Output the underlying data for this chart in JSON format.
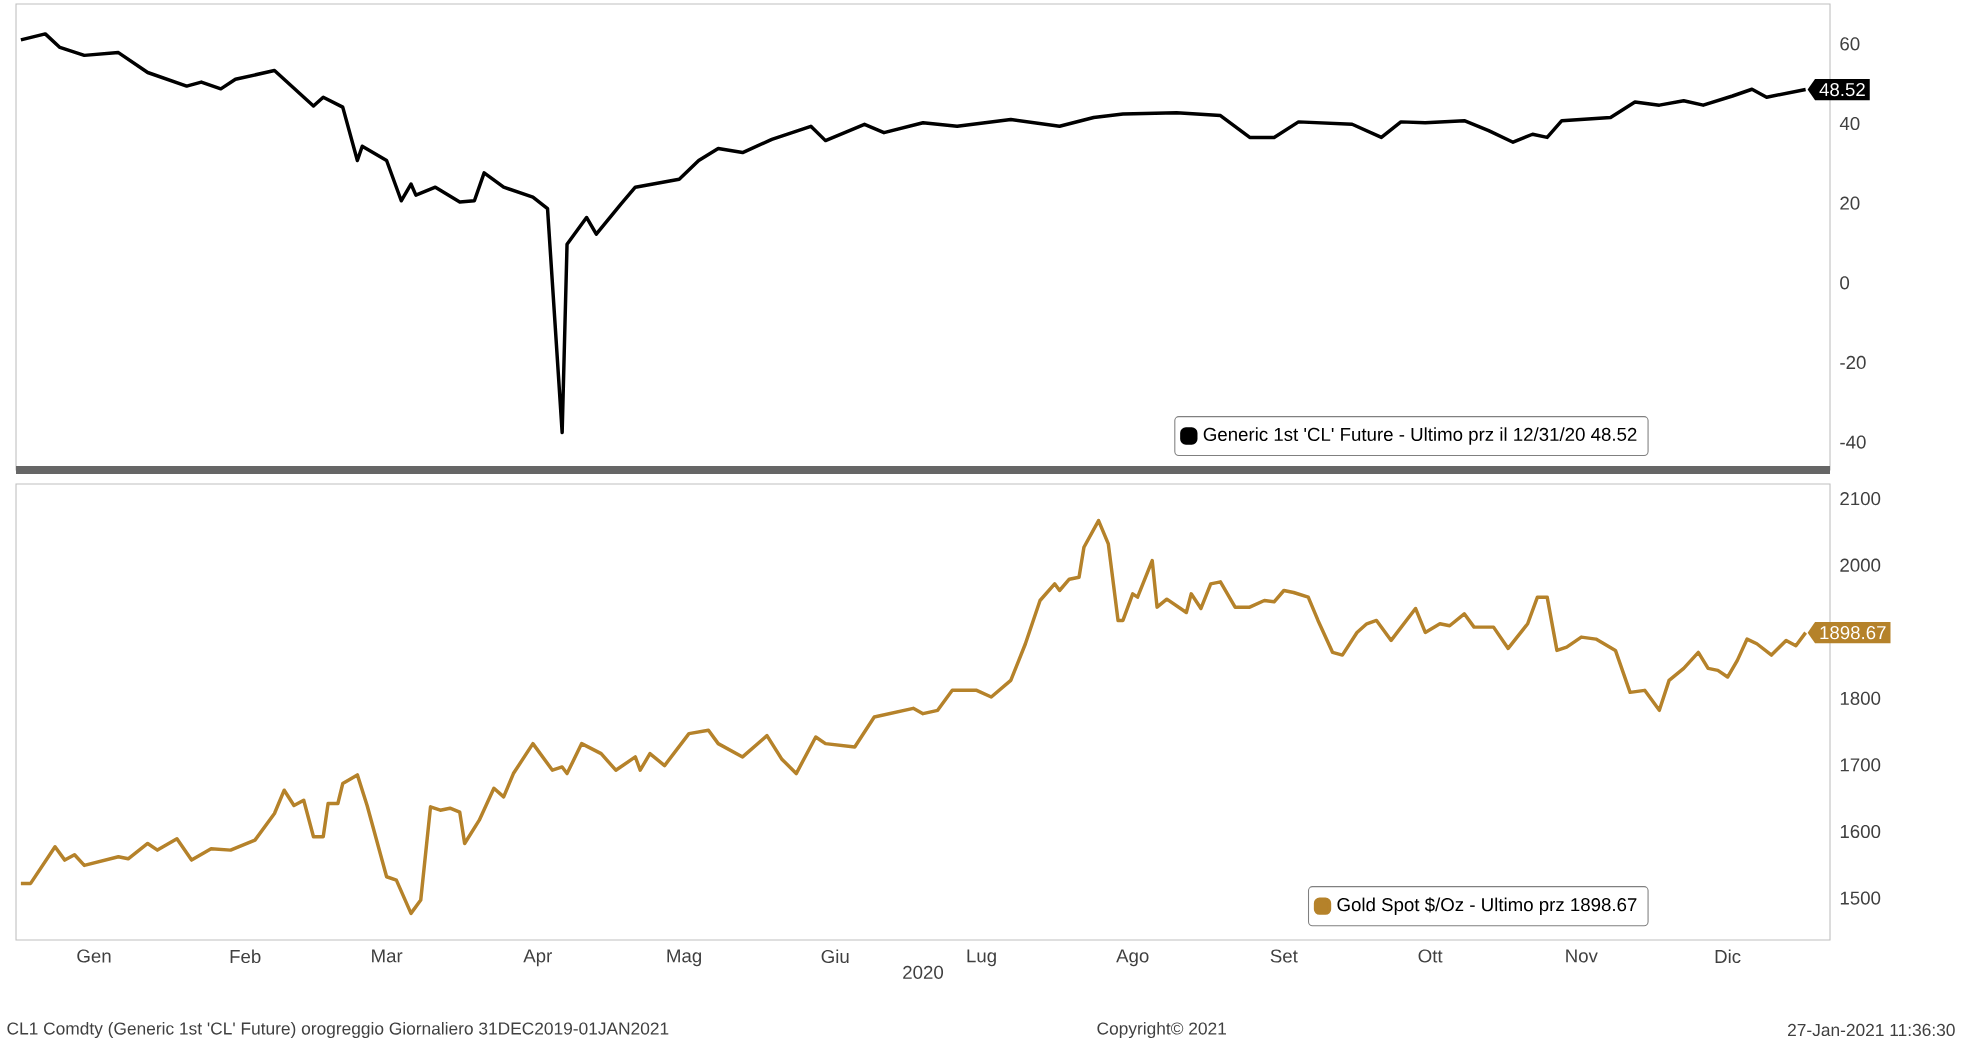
{
  "chart_data": [
    {
      "type": "line",
      "x": [
        "2019-12-31",
        "2020-01-05",
        "2020-01-08",
        "2020-01-13",
        "2020-01-20",
        "2020-01-26",
        "2020-02-03",
        "2020-02-06",
        "2020-02-10",
        "2020-02-13",
        "2020-02-21",
        "2020-02-29",
        "2020-03-02",
        "2020-03-06",
        "2020-03-09",
        "2020-03-10",
        "2020-03-15",
        "2020-03-18",
        "2020-03-20",
        "2020-03-21",
        "2020-03-25",
        "2020-03-30",
        "2020-04-02",
        "2020-04-04",
        "2020-04-08",
        "2020-04-14",
        "2020-04-17",
        "2020-04-20",
        "2020-04-21",
        "2020-04-25",
        "2020-04-27",
        "2020-05-02",
        "2020-05-05",
        "2020-05-14",
        "2020-05-18",
        "2020-05-22",
        "2020-05-27",
        "2020-06-02",
        "2020-06-10",
        "2020-06-13",
        "2020-06-21",
        "2020-06-25",
        "2020-07-03",
        "2020-07-10",
        "2020-07-21",
        "2020-07-31",
        "2020-08-07",
        "2020-08-13",
        "2020-08-24",
        "2020-09-02",
        "2020-09-08",
        "2020-09-13",
        "2020-09-18",
        "2020-09-29",
        "2020-10-05",
        "2020-10-09",
        "2020-10-14",
        "2020-10-22",
        "2020-10-27",
        "2020-11-01",
        "2020-11-05",
        "2020-11-08",
        "2020-11-11",
        "2020-11-21",
        "2020-11-26",
        "2020-12-01",
        "2020-12-06",
        "2020-12-10",
        "2020-12-16",
        "2020-12-20",
        "2020-12-23",
        "2020-12-31"
      ],
      "series": [
        {
          "name": "Generic 1st 'CL' Future - Ultimo prz il 12/31/20 48.52",
          "color": "#000000",
          "values": [
            61,
            62.5,
            59.1,
            57.1,
            57.8,
            52.8,
            49.4,
            50.4,
            48.7,
            51.1,
            53.3,
            44.4,
            46.6,
            44.1,
            30.7,
            34.3,
            30.7,
            20.6,
            24.8,
            22,
            24,
            20.3,
            20.6,
            27.6,
            24,
            21.5,
            18.6,
            -37.6,
            9.7,
            16.4,
            12.2,
            19.7,
            24,
            26,
            30.7,
            33.7,
            32.7,
            36,
            39.3,
            35.7,
            39.8,
            37.7,
            40.2,
            39.3,
            41,
            39.3,
            41.5,
            42.4,
            42.7,
            42,
            36.5,
            36.5,
            40.4,
            39.8,
            36.5,
            40.4,
            40.2,
            40.7,
            38.2,
            35.3,
            37.3,
            36.5,
            40.7,
            41.5,
            45.4,
            44.6,
            45.7,
            44.6,
            46.9,
            48.6,
            46.6,
            48.52
          ]
        }
      ],
      "xlim": [
        "2019-12-30",
        "2021-01-05"
      ],
      "xticks": [
        {
          "value": "2020-01-15",
          "label": null
        },
        {
          "value": "2020-02-15",
          "label": null
        },
        {
          "value": "2020-03-15",
          "label": null
        },
        {
          "value": "2020-04-15",
          "label": null
        },
        {
          "value": "2020-05-15",
          "label": null
        },
        {
          "value": "2020-06-15",
          "label": null
        },
        {
          "value": "2020-07-15",
          "label": null
        },
        {
          "value": "2020-08-15",
          "label": null
        },
        {
          "value": "2020-09-15",
          "label": null
        },
        {
          "value": "2020-10-15",
          "label": null
        },
        {
          "value": "2020-11-15",
          "label": null
        },
        {
          "value": "2020-12-15",
          "label": null
        }
      ],
      "ylim": [
        -47,
        70
      ],
      "yticks": [
        -40,
        -20,
        0,
        20,
        40,
        60
      ],
      "tick_labels": "y",
      "legend": "bottom right",
      "annotations": [
        {
          "text": "48.52",
          "x": "2020-12-31",
          "y": 48.52
        }
      ]
    },
    {
      "type": "line",
      "x": [
        "2019-12-31",
        "2020-01-02",
        "2020-01-07",
        "2020-01-09",
        "2020-01-11",
        "2020-01-13",
        "2020-01-20",
        "2020-01-22",
        "2020-01-26",
        "2020-01-28",
        "2020-02-01",
        "2020-02-04",
        "2020-02-08",
        "2020-02-12",
        "2020-02-17",
        "2020-02-21",
        "2020-02-23",
        "2020-02-25",
        "2020-02-27",
        "2020-02-29",
        "2020-03-02",
        "2020-03-03",
        "2020-03-05",
        "2020-03-06",
        "2020-03-09",
        "2020-03-11",
        "2020-03-15",
        "2020-03-17",
        "2020-03-20",
        "2020-03-22",
        "2020-03-24",
        "2020-03-26",
        "2020-03-28",
        "2020-03-30",
        "2020-03-31",
        "2020-04-03",
        "2020-04-06",
        "2020-04-08",
        "2020-04-10",
        "2020-04-14",
        "2020-04-18",
        "2020-04-20",
        "2020-04-21",
        "2020-04-24",
        "2020-04-28",
        "2020-05-01",
        "2020-05-05",
        "2020-05-06",
        "2020-05-08",
        "2020-05-11",
        "2020-05-16",
        "2020-05-20",
        "2020-05-22",
        "2020-05-27",
        "2020-06-01",
        "2020-06-04",
        "2020-06-07",
        "2020-06-11",
        "2020-06-13",
        "2020-06-19",
        "2020-06-23",
        "2020-07-01",
        "2020-07-03",
        "2020-07-06",
        "2020-07-09",
        "2020-07-14",
        "2020-07-17",
        "2020-07-21",
        "2020-07-24",
        "2020-07-27",
        "2020-07-30",
        "2020-07-31",
        "2020-08-02",
        "2020-08-04",
        "2020-08-05",
        "2020-08-08",
        "2020-08-10",
        "2020-08-12",
        "2020-08-13",
        "2020-08-15",
        "2020-08-16",
        "2020-08-19",
        "2020-08-20",
        "2020-08-22",
        "2020-08-26",
        "2020-08-27",
        "2020-08-29",
        "2020-08-31",
        "2020-09-02",
        "2020-09-05",
        "2020-09-08",
        "2020-09-11",
        "2020-09-13",
        "2020-09-15",
        "2020-09-17",
        "2020-09-20",
        "2020-09-22",
        "2020-09-25",
        "2020-09-27",
        "2020-09-30",
        "2020-10-02",
        "2020-10-04",
        "2020-10-07",
        "2020-10-12",
        "2020-10-14",
        "2020-10-17",
        "2020-10-19",
        "2020-10-22",
        "2020-10-24",
        "2020-10-28",
        "2020-10-31",
        "2020-11-04",
        "2020-11-06",
        "2020-11-08",
        "2020-11-10",
        "2020-11-12",
        "2020-11-15",
        "2020-11-18",
        "2020-11-22",
        "2020-11-25",
        "2020-11-28",
        "2020-12-01",
        "2020-12-03",
        "2020-12-06",
        "2020-12-09",
        "2020-12-11",
        "2020-12-13",
        "2020-12-15",
        "2020-12-17",
        "2020-12-19",
        "2020-12-21",
        "2020-12-24",
        "2020-12-27",
        "2020-12-29",
        "2020-12-31"
      ],
      "series": [
        {
          "name": "Gold Spot $/Oz - Ultimo prz 1898.67",
          "color": "#b5822a",
          "values": [
            1522,
            1522,
            1577,
            1557,
            1565,
            1549,
            1562,
            1559,
            1582,
            1572,
            1589,
            1557,
            1574,
            1572,
            1587,
            1627,
            1662,
            1639,
            1647,
            1592,
            1592,
            1642,
            1642,
            1672,
            1685,
            1639,
            1532,
            1527,
            1477,
            1497,
            1637,
            1632,
            1635,
            1629,
            1582,
            1617,
            1665,
            1652,
            1687,
            1732,
            1692,
            1697,
            1687,
            1732,
            1717,
            1692,
            1712,
            1692,
            1717,
            1699,
            1747,
            1752,
            1732,
            1712,
            1744,
            1709,
            1687,
            1742,
            1732,
            1727,
            1772,
            1785,
            1777,
            1782,
            1812,
            1812,
            1802,
            1827,
            1882,
            1947,
            1972,
            1962,
            1979,
            1982,
            2027,
            2067,
            2032,
            1917,
            1917,
            1957,
            1952,
            2007,
            1937,
            1949,
            1929,
            1957,
            1935,
            1972,
            1975,
            1937,
            1937,
            1947,
            1945,
            1962,
            1959,
            1952,
            1917,
            1869,
            1865,
            1899,
            1912,
            1917,
            1887,
            1935,
            1899,
            1912,
            1909,
            1927,
            1907,
            1907,
            1875,
            1912,
            1952,
            1952,
            1872,
            1877,
            1892,
            1889,
            1872,
            1809,
            1812,
            1782,
            1827,
            1845,
            1869,
            1845,
            1842,
            1832,
            1857,
            1889,
            1882,
            1865,
            1887,
            1879,
            1898.67
          ]
        }
      ],
      "xlim": [
        "2019-12-30",
        "2021-01-05"
      ],
      "xticks": [
        {
          "value": "2020-01-15",
          "label": "Gen"
        },
        {
          "value": "2020-02-15",
          "label": "Feb"
        },
        {
          "value": "2020-03-15",
          "label": "Mar"
        },
        {
          "value": "2020-04-15",
          "label": "Apr"
        },
        {
          "value": "2020-05-15",
          "label": "Mag"
        },
        {
          "value": "2020-06-15",
          "label": "Giu"
        },
        {
          "value": "2020-07-15",
          "label": "Lug"
        },
        {
          "value": "2020-08-15",
          "label": "Ago"
        },
        {
          "value": "2020-09-15",
          "label": "Set"
        },
        {
          "value": "2020-10-15",
          "label": "Ott"
        },
        {
          "value": "2020-11-15",
          "label": "Nov"
        },
        {
          "value": "2020-12-15",
          "label": "Dic"
        }
      ],
      "xlabel": "2020",
      "ylim": [
        1437,
        2122
      ],
      "yticks": [
        1500,
        1600,
        1700,
        1800,
        2000,
        2100
      ],
      "legend": "bottom right",
      "annotations": [
        {
          "text": "1898.67",
          "x": "2020-12-31",
          "y": 1898.67
        },
        "CL1 Comdty (Generic 1st 'CL' Future) orogreggio Giornaliero 31DEC2019-01JAN2021",
        "Copyright© 2021",
        "27-Jan-2021 11:36:30"
      ]
    }
  ]
}
